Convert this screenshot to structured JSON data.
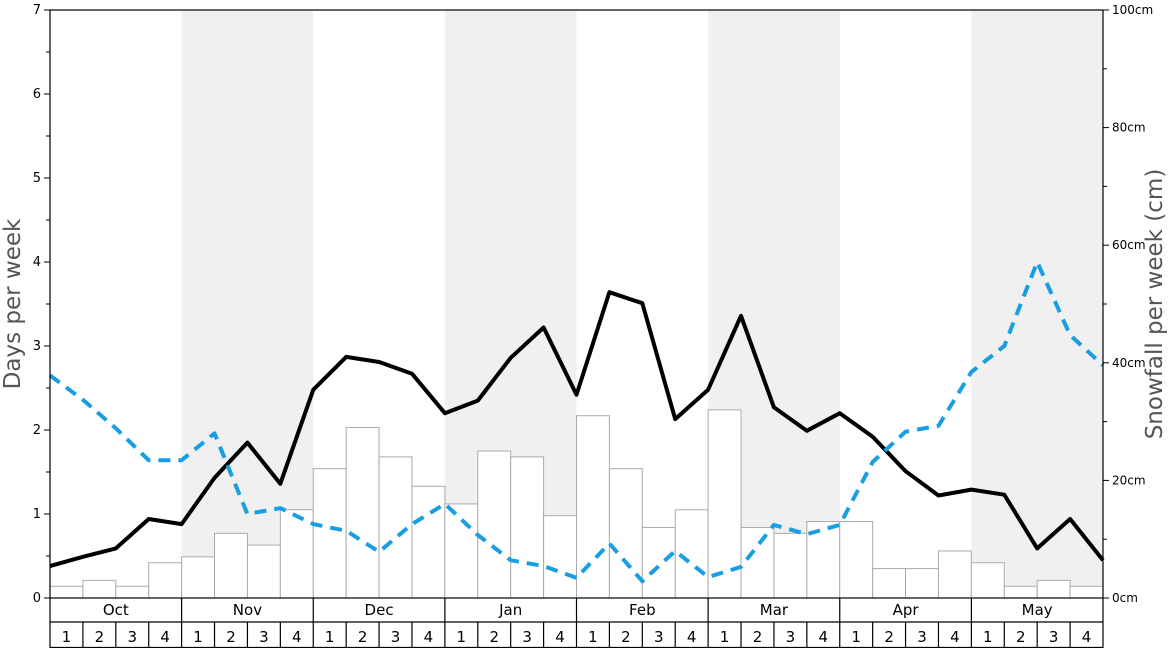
{
  "chart_data": {
    "type": "bar+line",
    "ylabel_left": "Days per week",
    "ylabel_right": "Snowfall per week (cm)",
    "ylim_left": [
      0,
      7
    ],
    "ylim_right": [
      0,
      100
    ],
    "yticks_left": [
      "0",
      "1",
      "2",
      "3",
      "4",
      "5",
      "6",
      "7"
    ],
    "yticks_right": [
      "0cm",
      "20cm",
      "40cm",
      "60cm",
      "80cm",
      "100cm"
    ],
    "months": [
      "Oct",
      "Nov",
      "Dec",
      "Jan",
      "Feb",
      "Mar",
      "Apr",
      "May"
    ],
    "weeks": [
      "1",
      "2",
      "3",
      "4"
    ],
    "shaded_months": [
      "Nov",
      "Jan",
      "Mar",
      "May"
    ],
    "series": [
      {
        "style": "bars",
        "axis": "right",
        "unit": "cm",
        "color": "#ffffff",
        "stroke": "#aaaaaa",
        "values": [
          2,
          3,
          2,
          6,
          7,
          11,
          9,
          15,
          22,
          29,
          24,
          19,
          16,
          25,
          24,
          14,
          31,
          22,
          12,
          15,
          32,
          12,
          11,
          13,
          13,
          5,
          5,
          8,
          6,
          2,
          3,
          2
        ]
      },
      {
        "style": "solid",
        "axis": "left",
        "color": "#000000",
        "values": [
          0.38,
          0.49,
          0.59,
          0.94,
          0.88,
          1.43,
          1.85,
          1.36,
          2.48,
          2.87,
          2.81,
          2.67,
          2.2,
          2.35,
          2.86,
          3.22,
          2.42,
          3.64,
          3.51,
          2.13,
          2.48,
          3.36,
          2.27,
          1.99,
          2.2,
          1.92,
          1.51,
          1.22,
          1.29,
          1.23,
          0.59,
          0.94,
          0.45
        ]
      },
      {
        "style": "dashed",
        "axis": "left",
        "color": "#1a9ee3",
        "values": [
          2.65,
          2.36,
          2.02,
          1.64,
          1.64,
          1.96,
          1.0,
          1.07,
          0.88,
          0.8,
          0.55,
          0.88,
          1.12,
          0.75,
          0.45,
          0.38,
          0.24,
          0.65,
          0.2,
          0.56,
          0.25,
          0.37,
          0.87,
          0.76,
          0.87,
          1.62,
          1.98,
          2.05,
          2.69,
          3.0,
          4.0,
          3.13,
          2.77
        ]
      }
    ],
    "shade_color": "#f0f0f0"
  }
}
